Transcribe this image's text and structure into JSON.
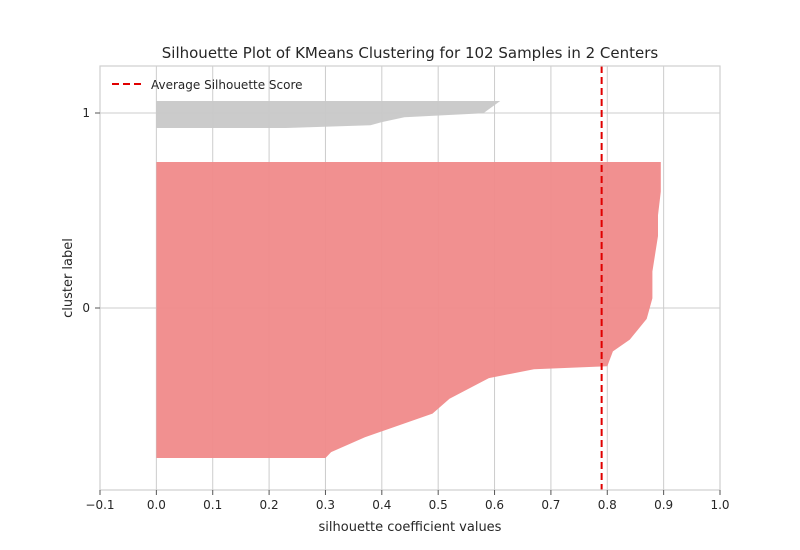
{
  "chart_data": {
    "type": "area",
    "title": "Silhouette Plot of KMeans Clustering for 102 Samples in 2 Centers",
    "xlabel": "silhouette coefficient values",
    "ylabel": "cluster label",
    "xlim": [
      -0.1,
      1.0
    ],
    "x_ticks": [
      "−0.1",
      "0.0",
      "0.1",
      "0.2",
      "0.3",
      "0.4",
      "0.5",
      "0.6",
      "0.7",
      "0.8",
      "0.9",
      "1.0"
    ],
    "x_tick_values": [
      -0.1,
      0.0,
      0.1,
      0.2,
      0.3,
      0.4,
      0.5,
      0.6,
      0.7,
      0.8,
      0.9,
      1.0
    ],
    "y_ticks": [
      "0",
      "1"
    ],
    "grid": true,
    "legend": {
      "placement": "top-left",
      "entries": [
        "Average Silhouette Score"
      ]
    },
    "average_score": 0.79,
    "series": [
      {
        "cluster": "0",
        "color": "#f08a8a",
        "profile": [
          [
            0.3,
            0.0
          ],
          [
            0.31,
            0.02
          ],
          [
            0.37,
            0.07
          ],
          [
            0.49,
            0.15
          ],
          [
            0.52,
            0.2
          ],
          [
            0.59,
            0.27
          ],
          [
            0.67,
            0.3
          ],
          [
            0.8,
            0.31
          ],
          [
            0.81,
            0.36
          ],
          [
            0.84,
            0.4
          ],
          [
            0.87,
            0.47
          ],
          [
            0.88,
            0.54
          ],
          [
            0.88,
            0.63
          ],
          [
            0.89,
            0.75
          ],
          [
            0.89,
            0.82
          ],
          [
            0.895,
            0.9
          ],
          [
            0.895,
            1.0
          ]
        ]
      },
      {
        "cluster": "1",
        "color": "#c8c8c8",
        "profile": [
          [
            0.23,
            0.0
          ],
          [
            0.38,
            0.1
          ],
          [
            0.4,
            0.22
          ],
          [
            0.44,
            0.4
          ],
          [
            0.58,
            0.55
          ],
          [
            0.61,
            1.0
          ]
        ]
      }
    ]
  }
}
